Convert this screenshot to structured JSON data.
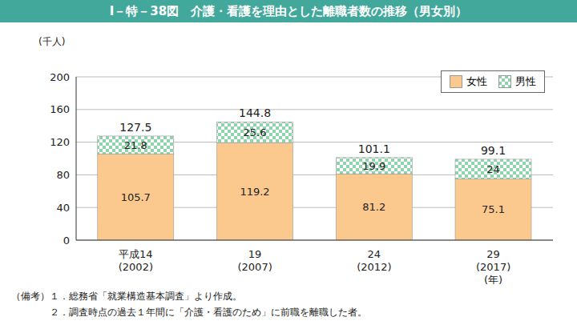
{
  "chart_data": {
    "type": "bar",
    "title": "Ⅰ－特－38図　介護・看護を理由とした離職者数の推移（男女別）",
    "y_label": "(千人)",
    "x_label": "(年)",
    "categories": [
      "平成14\n(2002)",
      "19\n(2007)",
      "24\n(2012)",
      "29\n(2017)"
    ],
    "series": [
      {
        "name": "女性",
        "color": "#fbc98d",
        "values": [
          105.7,
          119.2,
          81.2,
          75.1
        ]
      },
      {
        "name": "男性",
        "color": "#8fd3ad",
        "values": [
          21.8,
          25.6,
          19.9,
          24.0
        ]
      }
    ],
    "totals": [
      127.5,
      144.8,
      101.1,
      99.1
    ],
    "ylim": [
      0,
      200
    ],
    "yticks": [
      0,
      40,
      80,
      120,
      160,
      200
    ],
    "grid": true,
    "stacked": true,
    "data_labels": true,
    "legend": "upper right",
    "notes": [
      "（備考）１．総務省「就業構造基本調査」より作成。",
      "２．調査時点の過去１年間に「介護・看護のため」に前職を離職した者。"
    ]
  }
}
